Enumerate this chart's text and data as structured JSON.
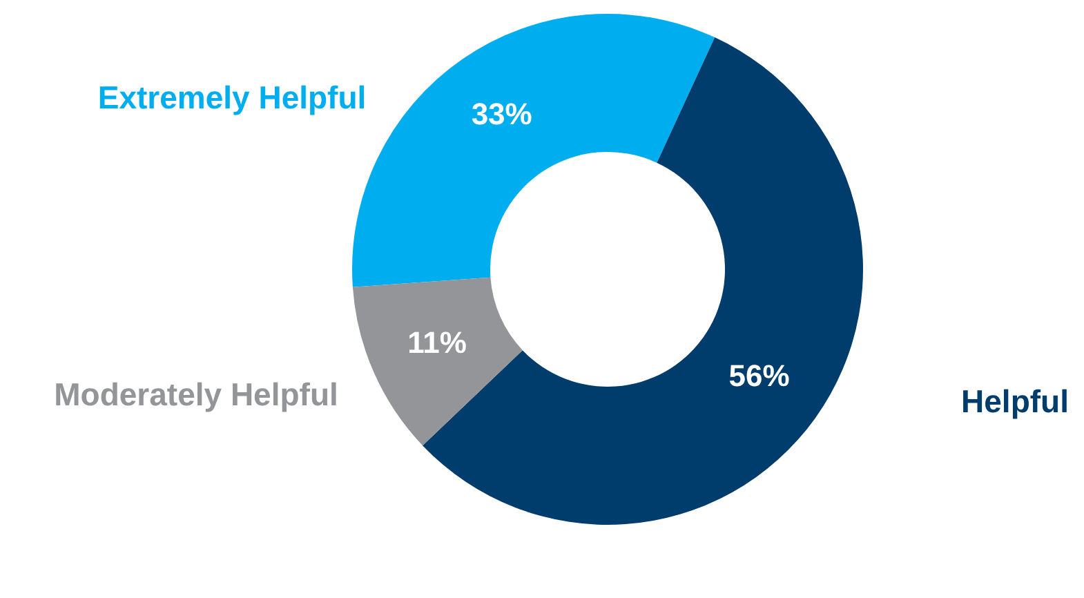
{
  "chart_data": {
    "type": "donut",
    "categories": [
      "Extremely Helpful",
      "Helpful",
      "Moderately Helpful"
    ],
    "values": [
      33,
      56,
      11
    ],
    "value_labels": [
      "33%",
      "56%",
      "11%"
    ],
    "colors": [
      "#00aeef",
      "#003c6c",
      "#939598"
    ],
    "legend": false
  }
}
